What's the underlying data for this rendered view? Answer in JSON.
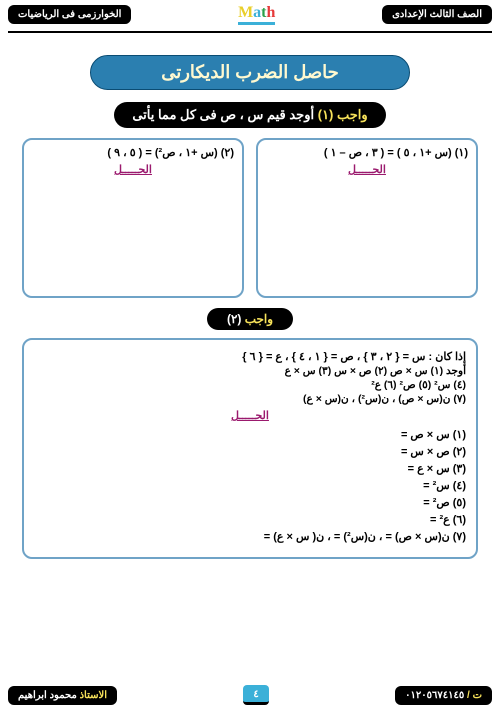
{
  "header": {
    "right": "الصف الثالث الإعدادى",
    "left": "الخوارزمى فى الرياضيات",
    "logo": "Math"
  },
  "title": "حاصل الضرب الديكارتى",
  "duty1": {
    "label_yellow": "واجب (١)",
    "label_white": " أوجد قيم س ، ص فى كل مما يأتى"
  },
  "box1": {
    "text": "(١) (س +١ ، ٥ ) = ( ٣ ، ص – ١ )",
    "sol": "الحـــــل"
  },
  "box2": {
    "text": "(٢) (س +١ ، ص²) = ( ٥ ، ٩ )",
    "sol": "الحـــــل"
  },
  "duty2": {
    "label_yellow": "واجب ",
    "label_white": "(٢)"
  },
  "big": {
    "intro": "إذا كان : س = { ٢ ، ٣ } ، ص = { ١ ، ٤ } ، ع = { ٦ }",
    "find_row1": "أوجد (١) س × ص    (٢) ص × س    (٣) س × ع",
    "find_row2": "(٤) س²        (٥) ص²        (٦) ع²",
    "find_row3": "(٧) ن(س × ص)  ،  ن(س²)  ،  ن(س × ع)",
    "sol": "الحـــــل",
    "a1": "(١) س × ص =",
    "a2": "(٢) ص × س =",
    "a3": "(٣) س × ع =",
    "a4": "(٤) س² =",
    "a5": "(٥) ص² =",
    "a6": "(٦) ع² =",
    "a7": "(٧) ن(س × ص) =      ، ن(س²) =     ، ن( س × ع) ="
  },
  "footer": {
    "right_yellow": "ت / ",
    "right_white": "٠١٢٠٥٦٧٤١٤٥",
    "left_yellow": "الاستاذ ",
    "left_white": "محمود ابراهيم",
    "page": "٤"
  },
  "colors": {
    "banner_bg": "#2b7fb0",
    "banner_fg": "#fff9d0",
    "card_border": "#6fa3c7",
    "accent_purple": "#9b1a6e",
    "accent_yellow": "#f7e25a",
    "accent_cyan": "#3bb0d8"
  }
}
